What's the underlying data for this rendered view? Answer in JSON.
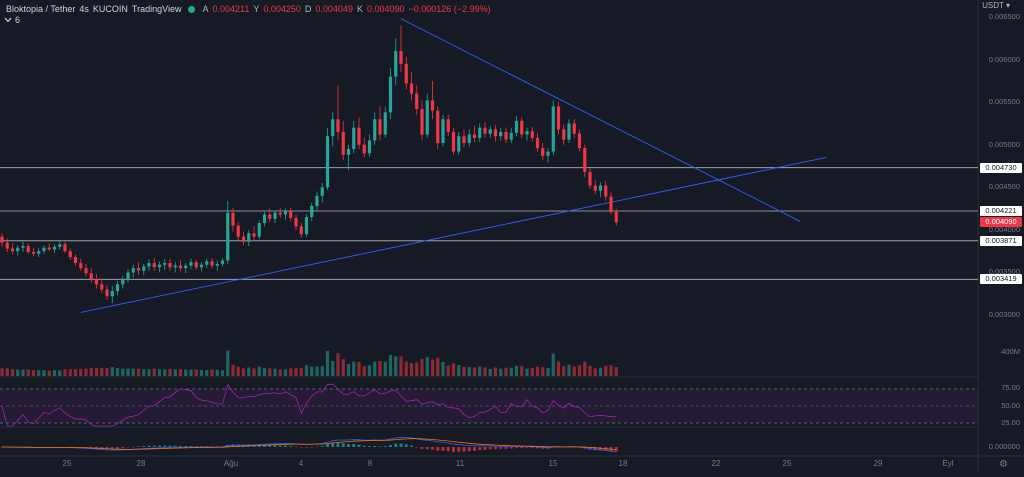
{
  "header": {
    "symbol": "Bloktopia / Tether",
    "interval": "4s",
    "exchange": "KUCOIN",
    "platform": "TradingView",
    "status_color": "#26a69a",
    "ohlc": [
      {
        "key": "A",
        "value": "0.004211"
      },
      {
        "key": "Y",
        "value": "0.004250"
      },
      {
        "key": "D",
        "value": "0.004049"
      },
      {
        "key": "K",
        "value": "0.004090"
      }
    ],
    "change": "−0.000126 (−2.99%)",
    "indicator_toggle_icon": "chevron-down-icon",
    "indicator_count": "6"
  },
  "currency": "USDT",
  "price_axis": {
    "labels": [
      "0.006500",
      "0.006000",
      "0.005500",
      "0.005000",
      "0.004500",
      "0.004000",
      "0.003500",
      "0.003000"
    ],
    "horizontal_lines": [
      {
        "label": "0.004730",
        "value": 0.00473
      },
      {
        "label": "0.004221",
        "value": 0.004221
      },
      {
        "label": "0.003871",
        "value": 0.003871
      },
      {
        "label": "0.003419",
        "value": 0.003419
      }
    ],
    "current_price": {
      "label": "0.004090",
      "value": 0.00409
    }
  },
  "volume": {
    "label": "400M"
  },
  "rsi": {
    "labels": [
      "75.00",
      "50.00",
      "25.00"
    ]
  },
  "macd": {
    "label": "0.000000"
  },
  "time_axis": {
    "labels": [
      "25",
      "28",
      "Ağu",
      "4",
      "8",
      "11",
      "15",
      "18",
      "22",
      "25",
      "29",
      "Eyl"
    ],
    "settings_icon": "gear-icon"
  },
  "colors": {
    "up": "#26a69a",
    "down": "#f23645",
    "trendline": "#2962ff",
    "rsi": "#9c27b0",
    "background": "#161a25"
  },
  "chart_data": {
    "type": "candlestick",
    "title": "Bloktopia / Tether · 4s · KUCOIN",
    "ylim": [
      0.0028,
      0.0067
    ],
    "ohlc": [
      [
        0.00392,
        0.00396,
        0.0038,
        0.00385
      ],
      [
        0.00385,
        0.0039,
        0.00374,
        0.00378
      ],
      [
        0.00378,
        0.00384,
        0.00371,
        0.00375
      ],
      [
        0.00375,
        0.00382,
        0.0037,
        0.00379
      ],
      [
        0.00379,
        0.00386,
        0.00374,
        0.00381
      ],
      [
        0.00381,
        0.00384,
        0.00372,
        0.00374
      ],
      [
        0.00374,
        0.00379,
        0.00369,
        0.00372
      ],
      [
        0.00372,
        0.00378,
        0.00368,
        0.00375
      ],
      [
        0.00375,
        0.00382,
        0.00372,
        0.00379
      ],
      [
        0.00379,
        0.00384,
        0.00375,
        0.00377
      ],
      [
        0.00377,
        0.00383,
        0.00373,
        0.0038
      ],
      [
        0.0038,
        0.00387,
        0.00377,
        0.00383
      ],
      [
        0.00383,
        0.00386,
        0.00373,
        0.00375
      ],
      [
        0.00375,
        0.00378,
        0.00365,
        0.00368
      ],
      [
        0.00368,
        0.00371,
        0.00358,
        0.00361
      ],
      [
        0.00361,
        0.00366,
        0.00352,
        0.00355
      ],
      [
        0.00355,
        0.0036,
        0.00345,
        0.00349
      ],
      [
        0.00349,
        0.00355,
        0.00338,
        0.00342
      ],
      [
        0.00342,
        0.00348,
        0.00331,
        0.00336
      ],
      [
        0.00336,
        0.00343,
        0.00326,
        0.0033
      ],
      [
        0.0033,
        0.00335,
        0.00318,
        0.00322
      ],
      [
        0.00322,
        0.00334,
        0.00314,
        0.00328
      ],
      [
        0.00328,
        0.0034,
        0.00323,
        0.00336
      ],
      [
        0.00336,
        0.00346,
        0.00331,
        0.00341
      ],
      [
        0.00341,
        0.00354,
        0.00338,
        0.0035
      ],
      [
        0.0035,
        0.00359,
        0.00344,
        0.00355
      ],
      [
        0.00355,
        0.00362,
        0.00347,
        0.00352
      ],
      [
        0.00352,
        0.0036,
        0.00347,
        0.00357
      ],
      [
        0.00357,
        0.00365,
        0.00352,
        0.00361
      ],
      [
        0.00361,
        0.00367,
        0.00352,
        0.00356
      ],
      [
        0.00356,
        0.00363,
        0.0035,
        0.00359
      ],
      [
        0.00359,
        0.00366,
        0.00353,
        0.00361
      ],
      [
        0.00361,
        0.00366,
        0.00352,
        0.00356
      ],
      [
        0.00356,
        0.00362,
        0.0035,
        0.00358
      ],
      [
        0.00358,
        0.00364,
        0.00351,
        0.00355
      ],
      [
        0.00355,
        0.00361,
        0.00349,
        0.00358
      ],
      [
        0.00358,
        0.00366,
        0.00354,
        0.00362
      ],
      [
        0.00362,
        0.00365,
        0.00353,
        0.00356
      ],
      [
        0.00356,
        0.00362,
        0.00351,
        0.00359
      ],
      [
        0.00359,
        0.00366,
        0.00355,
        0.00363
      ],
      [
        0.00363,
        0.00367,
        0.00355,
        0.00358
      ],
      [
        0.00358,
        0.00364,
        0.00352,
        0.0036
      ],
      [
        0.0036,
        0.00367,
        0.00357,
        0.00364
      ],
      [
        0.00364,
        0.00434,
        0.0036,
        0.0042
      ],
      [
        0.0042,
        0.00426,
        0.00398,
        0.00405
      ],
      [
        0.00405,
        0.00409,
        0.00388,
        0.00392
      ],
      [
        0.00392,
        0.00398,
        0.00382,
        0.00386
      ],
      [
        0.00386,
        0.004,
        0.00381,
        0.00396
      ],
      [
        0.00396,
        0.00404,
        0.00388,
        0.00392
      ],
      [
        0.00392,
        0.00411,
        0.00389,
        0.00408
      ],
      [
        0.00408,
        0.00421,
        0.00404,
        0.00418
      ],
      [
        0.00418,
        0.00425,
        0.00409,
        0.00413
      ],
      [
        0.00413,
        0.00423,
        0.00408,
        0.0042
      ],
      [
        0.0042,
        0.00426,
        0.00414,
        0.00418
      ],
      [
        0.00418,
        0.00425,
        0.00412,
        0.00422
      ],
      [
        0.00422,
        0.00426,
        0.0041,
        0.00414
      ],
      [
        0.00414,
        0.00418,
        0.004,
        0.00404
      ],
      [
        0.00404,
        0.00408,
        0.00391,
        0.00395
      ],
      [
        0.00395,
        0.00418,
        0.00392,
        0.00415
      ],
      [
        0.00415,
        0.00432,
        0.0041,
        0.00428
      ],
      [
        0.00428,
        0.00445,
        0.00423,
        0.0044
      ],
      [
        0.0044,
        0.00455,
        0.00432,
        0.0045
      ],
      [
        0.0045,
        0.0052,
        0.00447,
        0.0051
      ],
      [
        0.0051,
        0.00538,
        0.00498,
        0.0053
      ],
      [
        0.0053,
        0.0057,
        0.00505,
        0.00515
      ],
      [
        0.00515,
        0.00528,
        0.00482,
        0.00488
      ],
      [
        0.00488,
        0.005,
        0.0047,
        0.00495
      ],
      [
        0.00495,
        0.00528,
        0.0049,
        0.0052
      ],
      [
        0.0052,
        0.00532,
        0.00495,
        0.005
      ],
      [
        0.005,
        0.00508,
        0.00485,
        0.0049
      ],
      [
        0.0049,
        0.00512,
        0.00486,
        0.00505
      ],
      [
        0.00505,
        0.00538,
        0.005,
        0.0053
      ],
      [
        0.0053,
        0.00545,
        0.00505,
        0.00512
      ],
      [
        0.00512,
        0.00545,
        0.00508,
        0.00538
      ],
      [
        0.00538,
        0.0059,
        0.0053,
        0.0058
      ],
      [
        0.0058,
        0.00625,
        0.0057,
        0.0061
      ],
      [
        0.0061,
        0.0064,
        0.00585,
        0.00595
      ],
      [
        0.00595,
        0.00603,
        0.00565,
        0.00572
      ],
      [
        0.00572,
        0.00585,
        0.00552,
        0.0056
      ],
      [
        0.0056,
        0.0057,
        0.00535,
        0.00542
      ],
      [
        0.00542,
        0.00552,
        0.00505,
        0.00512
      ],
      [
        0.00512,
        0.0056,
        0.00508,
        0.00552
      ],
      [
        0.00552,
        0.00575,
        0.0053,
        0.0054
      ],
      [
        0.0054,
        0.00545,
        0.00495,
        0.00502
      ],
      [
        0.00502,
        0.00535,
        0.00498,
        0.0053
      ],
      [
        0.0053,
        0.00535,
        0.0051,
        0.00515
      ],
      [
        0.00515,
        0.0052,
        0.00488,
        0.00492
      ],
      [
        0.00492,
        0.00515,
        0.00488,
        0.0051
      ],
      [
        0.0051,
        0.00518,
        0.00497,
        0.00502
      ],
      [
        0.00502,
        0.00518,
        0.00498,
        0.00512
      ],
      [
        0.00512,
        0.00522,
        0.00503,
        0.00508
      ],
      [
        0.00508,
        0.00525,
        0.00503,
        0.0052
      ],
      [
        0.0052,
        0.00527,
        0.00508,
        0.00513
      ],
      [
        0.00513,
        0.00522,
        0.00508,
        0.00518
      ],
      [
        0.00518,
        0.00523,
        0.00504,
        0.0051
      ],
      [
        0.0051,
        0.0052,
        0.00505,
        0.00515
      ],
      [
        0.00515,
        0.0052,
        0.00502,
        0.00506
      ],
      [
        0.00506,
        0.0052,
        0.00502,
        0.00514
      ],
      [
        0.00514,
        0.00534,
        0.0051,
        0.00528
      ],
      [
        0.00528,
        0.00532,
        0.00508,
        0.00512
      ],
      [
        0.00512,
        0.0052,
        0.00505,
        0.00516
      ],
      [
        0.00516,
        0.00521,
        0.00504,
        0.00508
      ],
      [
        0.00508,
        0.00514,
        0.00492,
        0.00496
      ],
      [
        0.00496,
        0.00502,
        0.00482,
        0.00487
      ],
      [
        0.00487,
        0.00496,
        0.00479,
        0.00492
      ],
      [
        0.00492,
        0.00552,
        0.00488,
        0.00545
      ],
      [
        0.00545,
        0.0055,
        0.00512,
        0.00518
      ],
      [
        0.00518,
        0.00524,
        0.005,
        0.00506
      ],
      [
        0.00506,
        0.0053,
        0.00502,
        0.00525
      ],
      [
        0.00525,
        0.0053,
        0.00508,
        0.00513
      ],
      [
        0.00513,
        0.00518,
        0.00492,
        0.00496
      ],
      [
        0.00496,
        0.005,
        0.00462,
        0.00468
      ],
      [
        0.00468,
        0.00472,
        0.00448,
        0.00452
      ],
      [
        0.00452,
        0.00458,
        0.00442,
        0.00446
      ],
      [
        0.00446,
        0.00456,
        0.00438,
        0.00452
      ],
      [
        0.00452,
        0.00458,
        0.00434,
        0.00439
      ],
      [
        0.00439,
        0.00444,
        0.00418,
        0.00421
      ],
      [
        0.00421,
        0.00425,
        0.00405,
        0.00409
      ]
    ],
    "volume_scale_label": "400M",
    "volume_ylim": [
      0,
      600
    ]
  }
}
